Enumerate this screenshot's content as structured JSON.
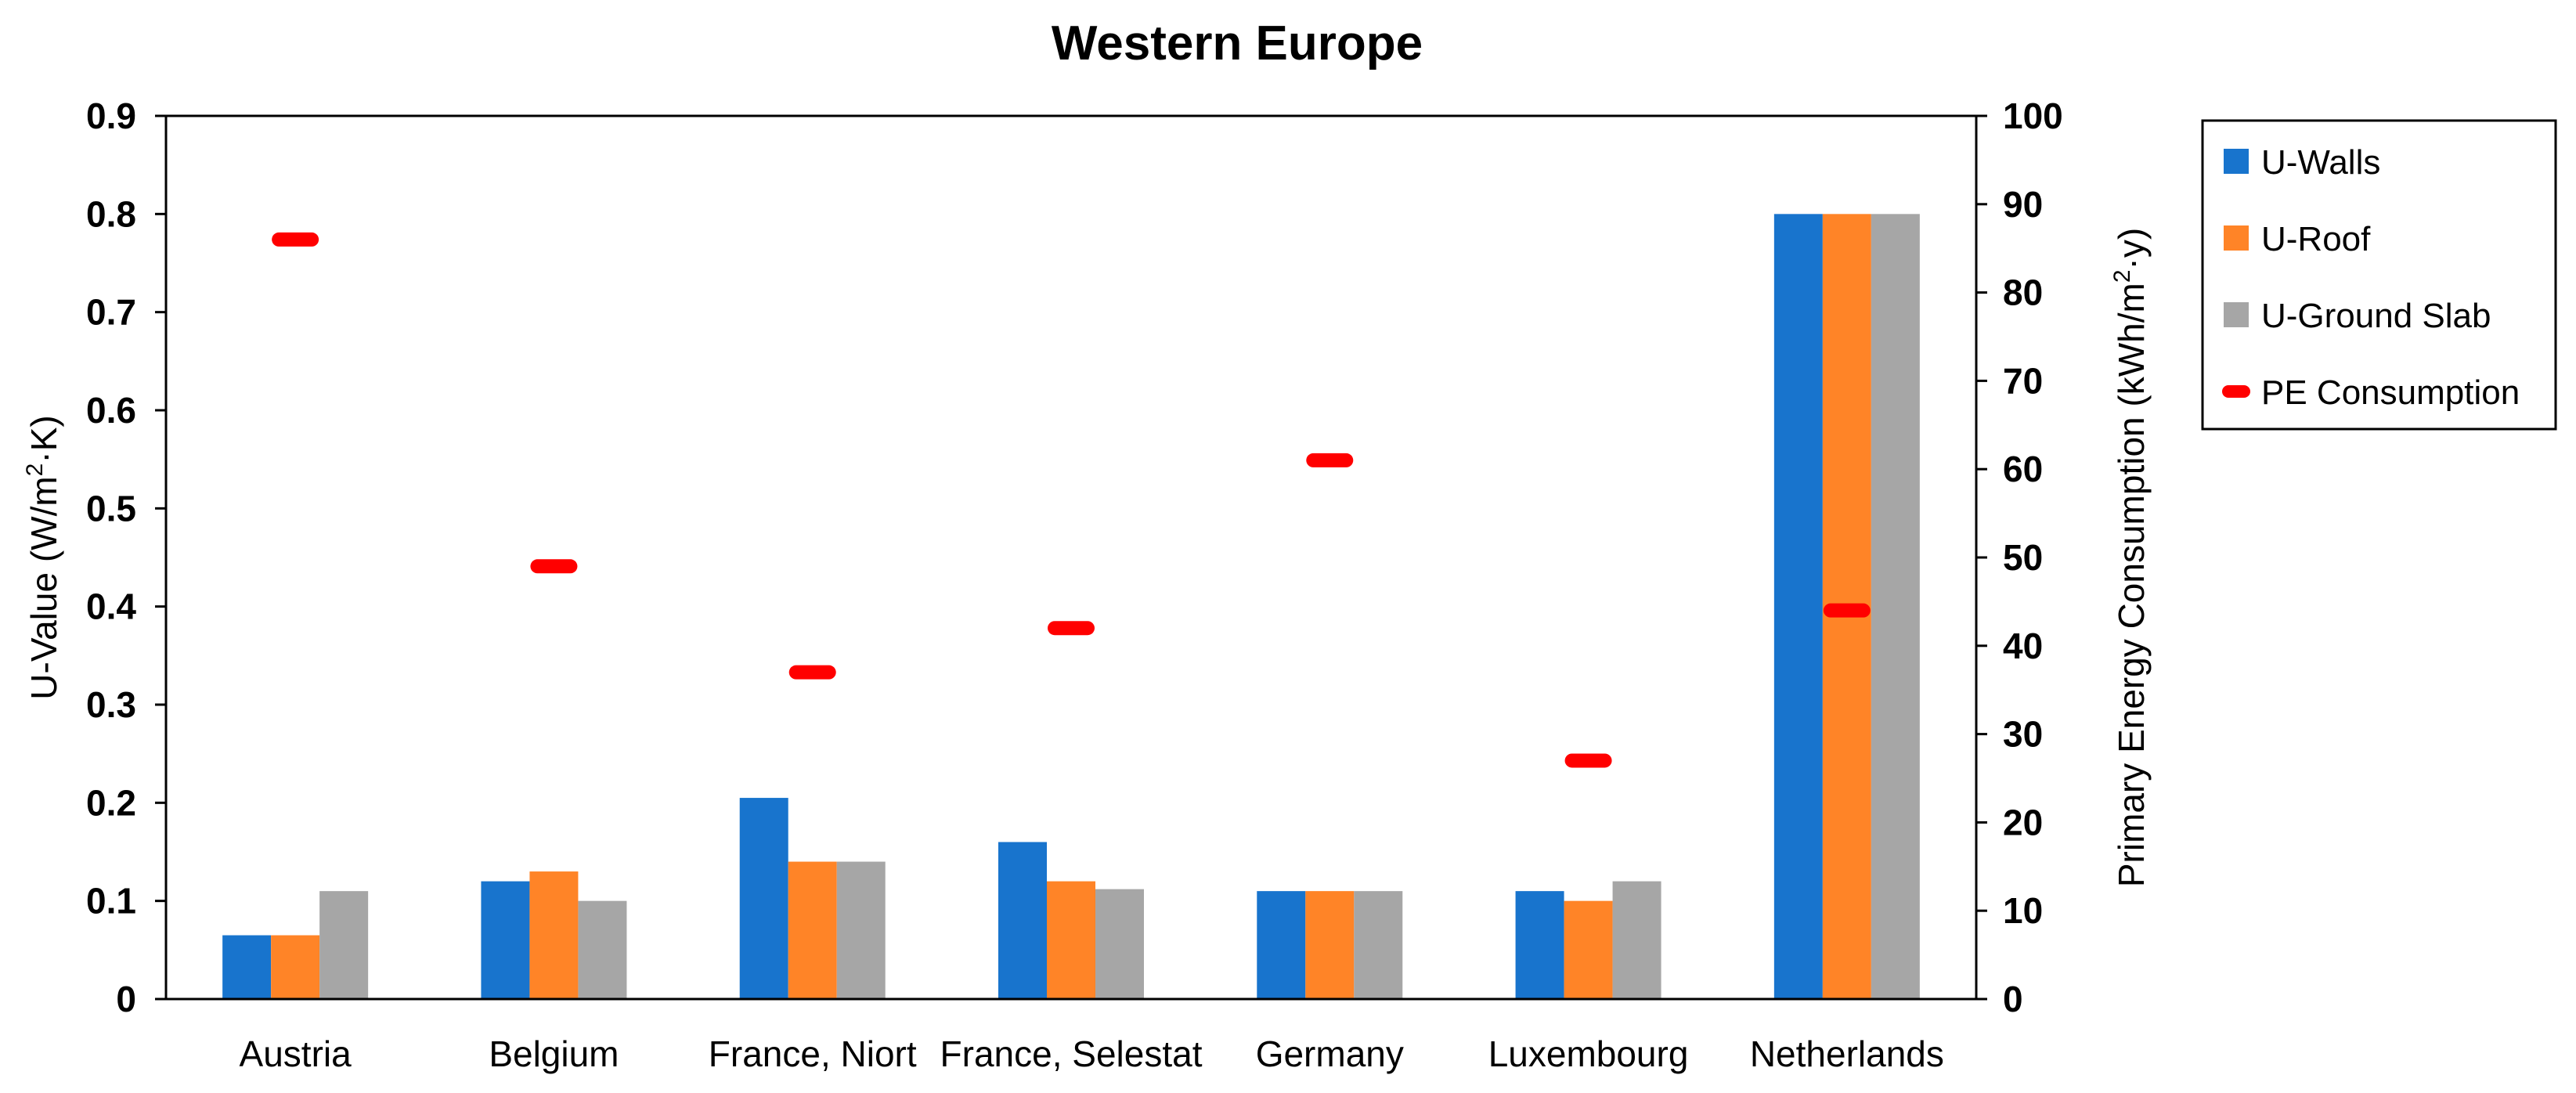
{
  "chart_data": {
    "type": "bar",
    "title": "Western Europe",
    "categories": [
      "Austria",
      "Belgium",
      "France, Niort",
      "France, Selestat",
      "Germany",
      "Luxembourg",
      "Netherlands"
    ],
    "series": [
      {
        "name": "U-Walls",
        "axis": "left",
        "color": "#1874CD",
        "values": [
          0.065,
          0.12,
          0.205,
          0.16,
          0.11,
          0.11,
          0.8
        ]
      },
      {
        "name": "U-Roof",
        "axis": "left",
        "color": "#FF8427",
        "values": [
          0.065,
          0.13,
          0.14,
          0.12,
          0.11,
          0.1,
          0.8
        ]
      },
      {
        "name": "U-Ground Slab",
        "axis": "left",
        "color": "#A6A6A6",
        "values": [
          0.11,
          0.1,
          0.14,
          0.112,
          0.11,
          0.12,
          0.8
        ]
      },
      {
        "name": "PE Consumption",
        "axis": "right",
        "type": "marker",
        "color": "#FF0000",
        "values": [
          86,
          49,
          37,
          42,
          61,
          27,
          44
        ]
      }
    ],
    "ylabel_left": {
      "prefix": "U-Value (W/m",
      "sup": "2",
      "suffix": "·K)"
    },
    "ylabel_right": {
      "prefix": "Primary Energy Consumption (kWh/m",
      "sup": "2",
      "suffix": "·y)"
    },
    "ylim_left": [
      0,
      0.9
    ],
    "yticks_left": [
      "0",
      "0.1",
      "0.2",
      "0.3",
      "0.4",
      "0.5",
      "0.6",
      "0.7",
      "0.8",
      "0.9"
    ],
    "ylim_right": [
      0,
      100
    ],
    "yticks_right": [
      "0",
      "10",
      "20",
      "30",
      "40",
      "50",
      "60",
      "70",
      "80",
      "90",
      "100"
    ],
    "grid": false,
    "legend_position": "right"
  }
}
